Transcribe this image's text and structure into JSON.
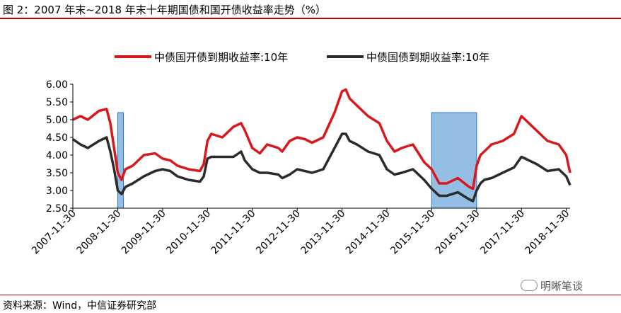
{
  "header": {
    "title": "图 2：2007 年末~2018 年末十年期国债和国开债收益率走势（%）"
  },
  "footer": {
    "source": "资料来源：Wind，中信证券研究部",
    "watermark": "明晰笔谈"
  },
  "chart_data": {
    "type": "line",
    "title": "",
    "xlabel": "",
    "ylabel": "",
    "x_range": [
      "2007-11-30",
      "2018-12-31"
    ],
    "ylim": [
      2.5,
      6.0
    ],
    "y_ticks": [
      "2.50",
      "3.00",
      "3.50",
      "4.00",
      "4.50",
      "5.00",
      "5.50",
      "6.00"
    ],
    "x_ticks": [
      "2007-11-30",
      "2008-11-30",
      "2009-11-30",
      "2010-11-30",
      "2011-11-30",
      "2012-11-30",
      "2013-11-30",
      "2014-11-30",
      "2015-11-30",
      "2016-11-30",
      "2017-11-30",
      "2018-11-30"
    ],
    "grid": false,
    "legend_position": "top-center",
    "series": [
      {
        "name": "中债国开债到期收益率:10年",
        "color": "#d7191c",
        "x": [
          "2007-11-30",
          "2008-01-31",
          "2008-03-31",
          "2008-06-30",
          "2008-08-31",
          "2008-09-30",
          "2008-10-31",
          "2008-11-30",
          "2008-12-31",
          "2009-01-31",
          "2009-03-31",
          "2009-06-30",
          "2009-09-30",
          "2009-11-30",
          "2010-01-31",
          "2010-03-31",
          "2010-06-30",
          "2010-09-30",
          "2010-10-31",
          "2010-11-30",
          "2010-12-31",
          "2011-03-31",
          "2011-06-30",
          "2011-08-31",
          "2011-09-30",
          "2011-11-30",
          "2012-01-31",
          "2012-03-31",
          "2012-06-30",
          "2012-07-31",
          "2012-09-30",
          "2012-11-30",
          "2013-01-31",
          "2013-03-31",
          "2013-06-30",
          "2013-09-30",
          "2013-11-30",
          "2013-12-31",
          "2014-01-31",
          "2014-03-31",
          "2014-06-30",
          "2014-09-30",
          "2014-11-30",
          "2015-01-31",
          "2015-03-31",
          "2015-06-30",
          "2015-09-30",
          "2015-11-30",
          "2016-01-31",
          "2016-03-31",
          "2016-06-30",
          "2016-09-30",
          "2016-10-31",
          "2016-11-30",
          "2016-12-31",
          "2017-01-31",
          "2017-03-31",
          "2017-06-30",
          "2017-09-30",
          "2017-11-30",
          "2017-12-31",
          "2018-03-31",
          "2018-06-30",
          "2018-09-30",
          "2018-11-30",
          "2018-12-31"
        ],
        "values": [
          5.0,
          5.1,
          5.0,
          5.25,
          5.3,
          4.9,
          4.2,
          3.5,
          3.3,
          3.6,
          3.7,
          4.0,
          4.05,
          3.9,
          3.85,
          3.7,
          3.6,
          3.55,
          3.75,
          4.4,
          4.6,
          4.5,
          4.8,
          4.9,
          4.7,
          4.2,
          4.05,
          4.3,
          4.2,
          4.1,
          4.4,
          4.5,
          4.45,
          4.35,
          4.5,
          5.2,
          5.8,
          5.85,
          5.6,
          5.4,
          5.1,
          4.9,
          4.4,
          4.1,
          4.2,
          4.3,
          3.8,
          3.6,
          3.2,
          3.2,
          3.35,
          3.1,
          3.05,
          3.7,
          4.0,
          4.1,
          4.3,
          4.4,
          4.6,
          5.1,
          5.0,
          4.7,
          4.4,
          4.3,
          4.0,
          3.5
        ]
      },
      {
        "name": "中债国债到期收益率:10年",
        "color": "#2b2b2b",
        "x": [
          "2007-11-30",
          "2008-01-31",
          "2008-03-31",
          "2008-06-30",
          "2008-08-31",
          "2008-09-30",
          "2008-10-31",
          "2008-11-30",
          "2008-12-31",
          "2009-01-31",
          "2009-03-31",
          "2009-06-30",
          "2009-09-30",
          "2009-11-30",
          "2010-01-31",
          "2010-03-31",
          "2010-06-30",
          "2010-09-30",
          "2010-10-31",
          "2010-11-30",
          "2010-12-31",
          "2011-03-31",
          "2011-06-30",
          "2011-08-31",
          "2011-09-30",
          "2011-11-30",
          "2012-01-31",
          "2012-03-31",
          "2012-06-30",
          "2012-07-31",
          "2012-09-30",
          "2012-11-30",
          "2013-01-31",
          "2013-03-31",
          "2013-06-30",
          "2013-09-30",
          "2013-11-30",
          "2013-12-31",
          "2014-01-31",
          "2014-03-31",
          "2014-06-30",
          "2014-09-30",
          "2014-11-30",
          "2015-01-31",
          "2015-03-31",
          "2015-06-30",
          "2015-09-30",
          "2015-11-30",
          "2016-01-31",
          "2016-03-31",
          "2016-06-30",
          "2016-09-30",
          "2016-10-31",
          "2016-11-30",
          "2016-12-31",
          "2017-01-31",
          "2017-03-31",
          "2017-06-30",
          "2017-09-30",
          "2017-11-30",
          "2017-12-31",
          "2018-03-31",
          "2018-06-30",
          "2018-09-30",
          "2018-11-30",
          "2018-12-31"
        ],
        "values": [
          4.45,
          4.3,
          4.2,
          4.4,
          4.5,
          4.1,
          3.6,
          3.0,
          2.9,
          3.1,
          3.2,
          3.4,
          3.55,
          3.6,
          3.55,
          3.4,
          3.3,
          3.25,
          3.4,
          3.9,
          3.95,
          3.95,
          3.95,
          4.1,
          3.85,
          3.6,
          3.5,
          3.5,
          3.45,
          3.35,
          3.45,
          3.6,
          3.55,
          3.5,
          3.6,
          4.2,
          4.6,
          4.6,
          4.4,
          4.3,
          4.1,
          4.0,
          3.6,
          3.45,
          3.5,
          3.6,
          3.3,
          3.05,
          2.85,
          2.85,
          2.95,
          2.75,
          2.7,
          3.0,
          3.2,
          3.3,
          3.35,
          3.5,
          3.65,
          3.95,
          3.9,
          3.75,
          3.55,
          3.6,
          3.4,
          3.15
        ]
      }
    ],
    "highlight_ranges": [
      {
        "start": "2008-11-30",
        "end": "2009-01-15",
        "color": "#5b9bd5"
      },
      {
        "start": "2015-11-30",
        "end": "2016-11-30",
        "color": "#5b9bd5"
      }
    ]
  }
}
